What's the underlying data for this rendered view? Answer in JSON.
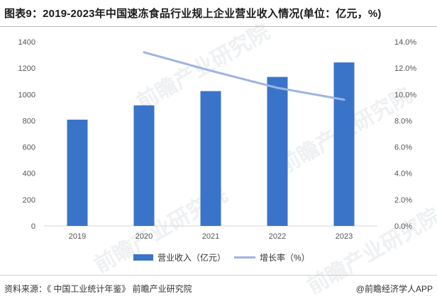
{
  "title": "图表9：2019-2023年中国速冻食品行业规上企业营业收入情况(单位：亿元，%)",
  "source": "资料来源：《 中国工业统计年鉴》 前瞻产业研究院",
  "credit": "@前瞻经济学人APP",
  "watermark": "前瞻产业研究院",
  "colors": {
    "bar": "#3A74C9",
    "line": "#9DB4E0",
    "axis_text": "#555555",
    "grid": "#e6e6e6"
  },
  "chart_data": {
    "type": "bar",
    "categories": [
      "2019",
      "2020",
      "2021",
      "2022",
      "2023"
    ],
    "series": [
      {
        "name": "营业收入（亿元）",
        "type": "bar",
        "axis": "left",
        "values": [
          808,
          917,
          1025,
          1133,
          1243
        ]
      },
      {
        "name": "增长率（%）",
        "type": "line",
        "axis": "right",
        "values": [
          null,
          13.2,
          11.8,
          10.5,
          9.6
        ]
      }
    ],
    "y_left": {
      "min": 0,
      "max": 1400,
      "ticks": [
        "0",
        "200",
        "400",
        "600",
        "800",
        "1000",
        "1200",
        "1400"
      ]
    },
    "y_right": {
      "min": 0,
      "max": 14,
      "ticks": [
        "0.0%",
        "2.0%",
        "4.0%",
        "6.0%",
        "8.0%",
        "10.0%",
        "12.0%",
        "14.0%"
      ]
    },
    "legend_position": "bottom-center"
  }
}
